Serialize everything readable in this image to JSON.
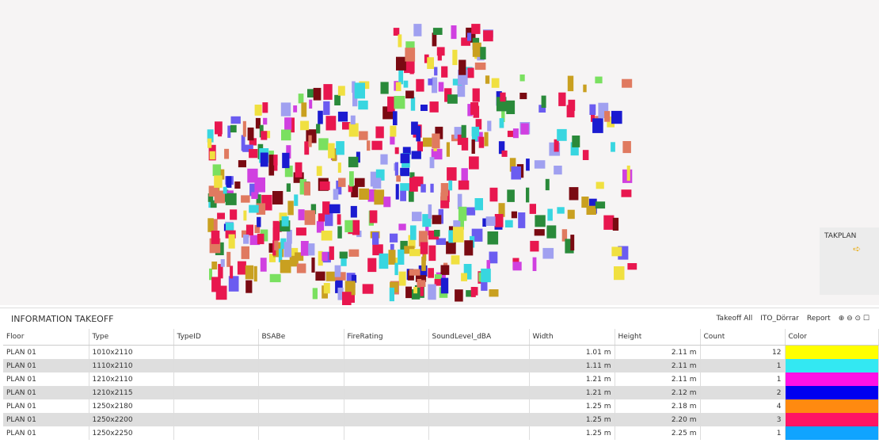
{
  "viewer": {
    "navigator_label": "TAKPLAN"
  },
  "panel": {
    "title": "INFORMATION TAKEOFF",
    "toolbar": {
      "takeoff_all": "Takeoff All",
      "filter": "ITO_Dörrar",
      "report": "Report"
    }
  },
  "table": {
    "columns": [
      "Floor",
      "Type",
      "TypeID",
      "BSABe",
      "FireRating",
      "SoundLevel_dBA",
      "Width",
      "Height",
      "Count",
      "Color"
    ],
    "rows": [
      {
        "floor": "PLAN 01",
        "type": "1010x2110",
        "width": "1.01 m",
        "height": "2.11 m",
        "count": 12,
        "color": "#ffff00"
      },
      {
        "floor": "PLAN 01",
        "type": "1110x2110",
        "width": "1.11 m",
        "height": "2.11 m",
        "count": 1,
        "color": "#33e8f2"
      },
      {
        "floor": "PLAN 01",
        "type": "1210x2110",
        "width": "1.21 m",
        "height": "2.11 m",
        "count": 1,
        "color": "#ff10e6"
      },
      {
        "floor": "PLAN 01",
        "type": "1210x2115",
        "width": "1.21 m",
        "height": "2.12 m",
        "count": 2,
        "color": "#0000f0"
      },
      {
        "floor": "PLAN 01",
        "type": "1250x2180",
        "width": "1.25 m",
        "height": "2.18 m",
        "count": 4,
        "color": "#ff8a10"
      },
      {
        "floor": "PLAN 01",
        "type": "1250x2200",
        "width": "1.25 m",
        "height": "2.20 m",
        "count": 3,
        "color": "#ff1464"
      },
      {
        "floor": "PLAN 01",
        "type": "1250x2250",
        "width": "1.25 m",
        "height": "2.25 m",
        "count": 1,
        "color": "#10a4ff"
      }
    ]
  }
}
